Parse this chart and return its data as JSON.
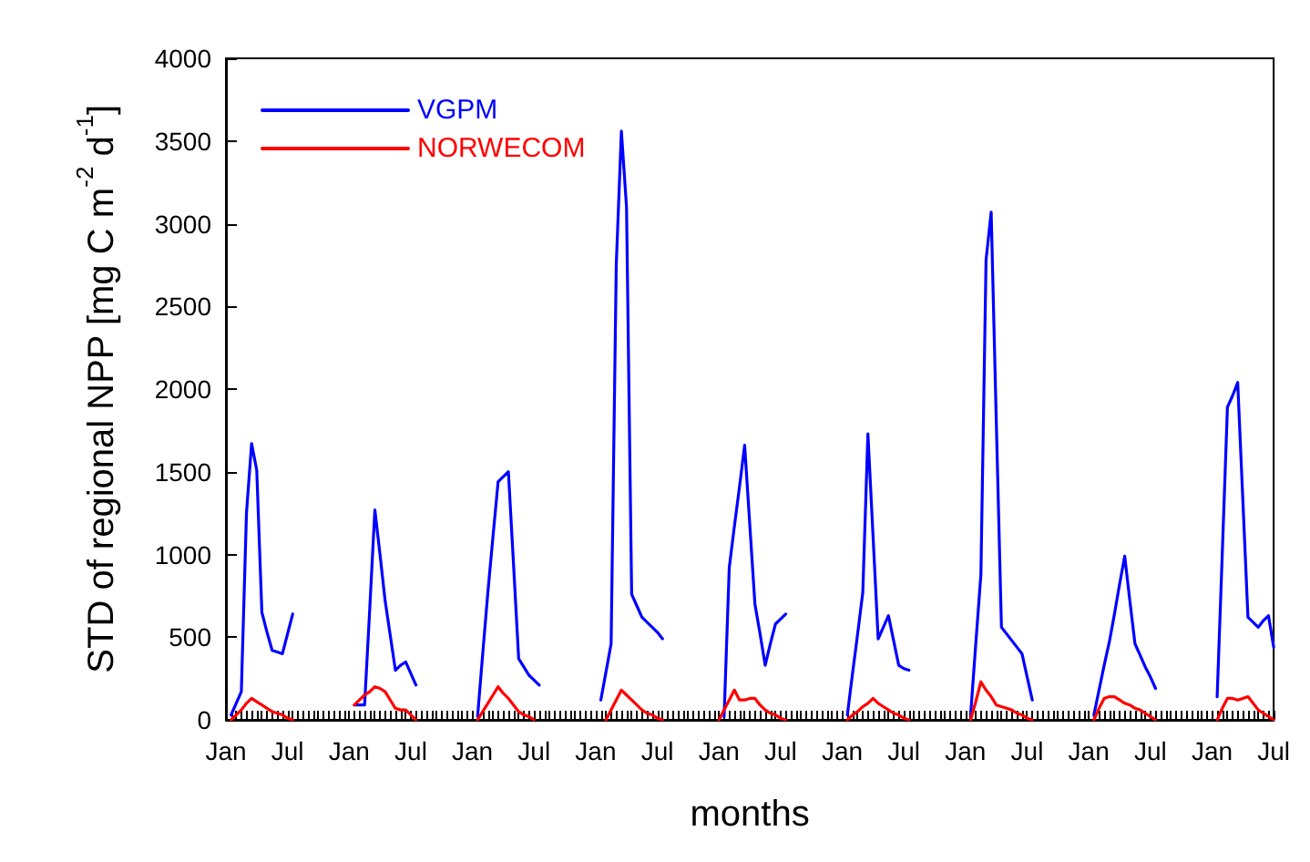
{
  "chart_data": {
    "type": "line",
    "xlabel": "months",
    "ylabel": "STD of regional NPP [mg C m$^{-2}$ d$^{-1}$]",
    "categories": [
      "Jan",
      null,
      null,
      null,
      null,
      null,
      null,
      null,
      null,
      null,
      null,
      null,
      "Jul",
      null,
      null,
      null,
      null,
      null,
      null,
      null,
      null,
      null,
      null,
      null,
      "Jan",
      null,
      null,
      null,
      null,
      null,
      null,
      null,
      null,
      null,
      null,
      null,
      "Jul",
      null,
      null,
      null,
      null,
      null,
      null,
      null,
      null,
      null,
      null,
      null,
      "Jan",
      null,
      null,
      null,
      null,
      null,
      null,
      null,
      null,
      null,
      null,
      null,
      "Jul",
      null,
      null,
      null,
      null,
      null,
      null,
      null,
      null,
      null,
      null,
      null,
      "Jan",
      null,
      null,
      null,
      null,
      null,
      null,
      null,
      null,
      null,
      null,
      null,
      "Jul",
      null,
      null,
      null,
      null,
      null,
      null,
      null,
      null,
      null,
      null,
      null,
      "Jan",
      null,
      null,
      null,
      null,
      null,
      null,
      null,
      null,
      null,
      null,
      null,
      "Jul",
      null,
      null,
      null,
      null,
      null,
      null,
      null,
      null,
      null,
      null,
      null,
      "Jan",
      null,
      null,
      null,
      null,
      null,
      null,
      null,
      null,
      null,
      null,
      null,
      "Jul",
      null,
      null,
      null,
      null,
      null,
      null,
      null,
      null,
      null,
      null,
      null,
      "Jan",
      null,
      null,
      null,
      null,
      null,
      null,
      null,
      null,
      null,
      null,
      null,
      "Jul",
      null,
      null,
      null,
      null,
      null,
      null,
      null,
      null,
      null,
      null,
      null,
      "Jan",
      null,
      null,
      null,
      null,
      null,
      null,
      null,
      null,
      null,
      null,
      null,
      "Jul",
      null,
      null,
      null,
      null,
      null,
      null,
      null,
      null,
      null,
      null,
      null,
      "Jan",
      null,
      null,
      null,
      null,
      null,
      null,
      null,
      null,
      null,
      null,
      null,
      "Jul"
    ],
    "ylim": [
      0,
      4000
    ],
    "yticks": [
      0,
      500,
      1000,
      1500,
      2000,
      2500,
      3000,
      3500,
      4000
    ],
    "grid": false,
    "legend": "top left",
    "marker": "none",
    "line_style": "solid",
    "series": [
      {
        "name": "VGPM",
        "color": "#0000ff",
        "values": [
          null,
          30,
          100,
          170,
          1250,
          1670,
          1510,
          650,
          530,
          420,
          410,
          400,
          520,
          640,
          null,
          null,
          null,
          null,
          null,
          null,
          null,
          null,
          null,
          null,
          null,
          90,
          90,
          90,
          670,
          1270,
          1000,
          720,
          510,
          300,
          330,
          350,
          280,
          210,
          null,
          null,
          null,
          null,
          null,
          null,
          null,
          null,
          null,
          null,
          null,
          20,
          400,
          770,
          1110,
          1440,
          1470,
          1500,
          940,
          370,
          320,
          270,
          240,
          210,
          null,
          null,
          null,
          null,
          null,
          null,
          null,
          null,
          null,
          null,
          null,
          120,
          290,
          460,
          2750,
          3560,
          3100,
          760,
          690,
          620,
          590,
          560,
          530,
          490,
          null,
          null,
          null,
          null,
          null,
          null,
          null,
          null,
          null,
          null,
          null,
          20,
          920,
          1170,
          1410,
          1660,
          1180,
          700,
          520,
          330,
          460,
          580,
          610,
          640,
          null,
          null,
          null,
          null,
          null,
          null,
          null,
          null,
          null,
          null,
          null,
          30,
          280,
          520,
          770,
          1730,
          1110,
          490,
          560,
          630,
          480,
          330,
          310,
          300,
          null,
          null,
          null,
          null,
          null,
          null,
          null,
          null,
          null,
          null,
          null,
          30,
          460,
          880,
          2780,
          3070,
          1800,
          560,
          520,
          480,
          440,
          400,
          260,
          120,
          null,
          null,
          null,
          null,
          null,
          null,
          null,
          null,
          null,
          null,
          null,
          30,
          180,
          330,
          470,
          640,
          820,
          990,
          720,
          460,
          390,
          320,
          260,
          190,
          null,
          null,
          null,
          null,
          null,
          null,
          null,
          null,
          null,
          null,
          null,
          140,
          1010,
          1890,
          1960,
          2040,
          1330,
          620,
          590,
          560,
          600,
          630,
          440
        ]
      },
      {
        "name": "NORWECOM",
        "color": "#ff0000",
        "values": [
          null,
          0,
          30,
          60,
          100,
          130,
          110,
          90,
          70,
          50,
          40,
          30,
          10,
          0,
          null,
          null,
          null,
          null,
          null,
          null,
          null,
          null,
          null,
          null,
          null,
          90,
          120,
          150,
          170,
          200,
          190,
          170,
          120,
          70,
          60,
          60,
          30,
          0,
          null,
          null,
          null,
          null,
          null,
          null,
          null,
          null,
          null,
          null,
          null,
          0,
          50,
          100,
          150,
          200,
          160,
          130,
          90,
          50,
          30,
          20,
          0,
          null,
          null,
          null,
          null,
          null,
          null,
          null,
          null,
          null,
          null,
          null,
          null,
          null,
          0,
          60,
          120,
          180,
          150,
          120,
          90,
          60,
          40,
          30,
          10,
          0,
          null,
          null,
          null,
          null,
          null,
          null,
          null,
          null,
          null,
          null,
          0,
          60,
          120,
          180,
          120,
          120,
          130,
          130,
          90,
          60,
          40,
          30,
          10,
          0,
          null,
          null,
          null,
          null,
          null,
          null,
          null,
          null,
          null,
          null,
          null,
          0,
          30,
          50,
          80,
          100,
          130,
          100,
          80,
          60,
          40,
          30,
          10,
          0,
          null,
          null,
          null,
          null,
          null,
          null,
          null,
          null,
          null,
          null,
          null,
          0,
          110,
          230,
          180,
          140,
          90,
          80,
          70,
          60,
          40,
          30,
          10,
          0,
          null,
          null,
          null,
          null,
          null,
          null,
          null,
          null,
          null,
          null,
          null,
          0,
          70,
          130,
          140,
          140,
          120,
          100,
          90,
          70,
          60,
          40,
          20,
          0,
          null,
          null,
          null,
          null,
          null,
          null,
          null,
          null,
          null,
          null,
          null,
          0,
          70,
          130,
          130,
          120,
          130,
          140,
          100,
          60,
          40,
          20,
          0
        ]
      }
    ]
  }
}
